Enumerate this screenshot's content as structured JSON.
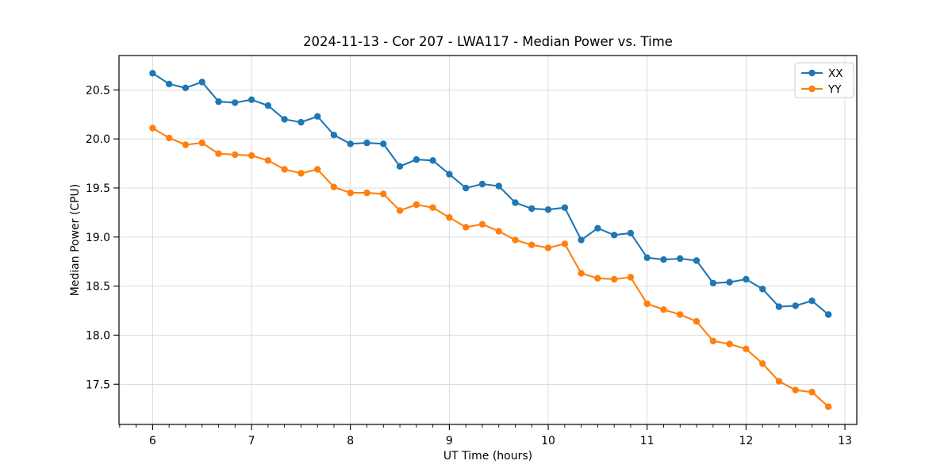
{
  "chart_data": {
    "type": "line",
    "title": "2024-11-13 - Cor 207 - LWA117 - Median Power vs. Time",
    "xlabel": "UT Time (hours)",
    "ylabel": "Median Power (CPU)",
    "xlim": [
      5.66,
      13.12
    ],
    "ylim": [
      17.09,
      20.85
    ],
    "xticks": [
      6,
      7,
      8,
      9,
      10,
      11,
      12,
      13
    ],
    "xtick_labels": [
      "6",
      "7",
      "8",
      "9",
      "10",
      "11",
      "12",
      "13"
    ],
    "x_minor_step": 0.16667,
    "yticks": [
      17.5,
      18.0,
      18.5,
      19.0,
      19.5,
      20.0,
      20.5
    ],
    "ytick_labels": [
      "17.5",
      "18.0",
      "18.5",
      "19.0",
      "19.5",
      "20.0",
      "20.5"
    ],
    "grid": true,
    "grid_color": "#dcdcdc",
    "spine_color": "#000000",
    "legend_position": "upper right",
    "x": [
      6.0,
      6.167,
      6.333,
      6.5,
      6.667,
      6.833,
      7.0,
      7.167,
      7.333,
      7.5,
      7.667,
      7.833,
      8.0,
      8.167,
      8.333,
      8.5,
      8.667,
      8.833,
      9.0,
      9.167,
      9.333,
      9.5,
      9.667,
      9.833,
      10.0,
      10.167,
      10.333,
      10.5,
      10.667,
      10.833,
      11.0,
      11.167,
      11.333,
      11.5,
      11.667,
      11.833,
      12.0,
      12.167,
      12.333,
      12.5,
      12.667,
      12.833
    ],
    "series": [
      {
        "name": "XX",
        "color": "#1f77b4",
        "values": [
          20.67,
          20.56,
          20.52,
          20.58,
          20.38,
          20.37,
          20.4,
          20.34,
          20.2,
          20.17,
          20.23,
          20.04,
          19.95,
          19.96,
          19.95,
          19.72,
          19.79,
          19.78,
          19.64,
          19.5,
          19.54,
          19.52,
          19.35,
          19.29,
          19.28,
          19.3,
          18.97,
          19.09,
          19.02,
          19.04,
          18.79,
          18.77,
          18.78,
          18.76,
          18.53,
          18.54,
          18.57,
          18.47,
          18.29,
          18.3,
          18.35,
          18.21
        ]
      },
      {
        "name": "YY",
        "color": "#ff7f0e",
        "values": [
          20.11,
          20.01,
          19.94,
          19.96,
          19.85,
          19.84,
          19.83,
          19.78,
          19.69,
          19.65,
          19.69,
          19.51,
          19.45,
          19.45,
          19.44,
          19.27,
          19.33,
          19.3,
          19.2,
          19.1,
          19.13,
          19.06,
          18.97,
          18.92,
          18.89,
          18.93,
          18.63,
          18.58,
          18.57,
          18.59,
          18.32,
          18.26,
          18.21,
          18.14,
          17.94,
          17.91,
          17.86,
          17.71,
          17.53,
          17.44,
          17.42,
          17.27
        ]
      }
    ]
  }
}
